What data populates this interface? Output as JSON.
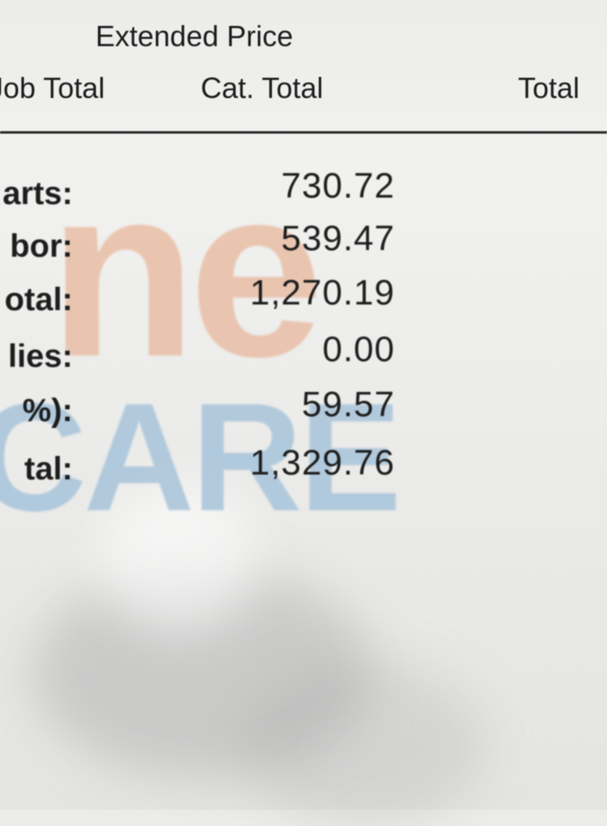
{
  "header": {
    "extended_price": "Extended Price",
    "job_total": "Job Total",
    "cat_total": "Cat. Total",
    "total": "Total"
  },
  "watermark": {
    "top": "ne",
    "bottom": "CARE",
    "top_color": "#e9bea6",
    "bottom_color": "#a8c4da"
  },
  "rows": [
    {
      "label": "arts:",
      "value": "730.72"
    },
    {
      "label": "bor:",
      "value": "539.47"
    },
    {
      "label": "otal:",
      "value": "1,270.19"
    },
    {
      "label": "lies:",
      "value": "0.00"
    },
    {
      "label": "%):",
      "value": "59.57"
    },
    {
      "label": "tal:",
      "value": "1,329.76"
    }
  ]
}
